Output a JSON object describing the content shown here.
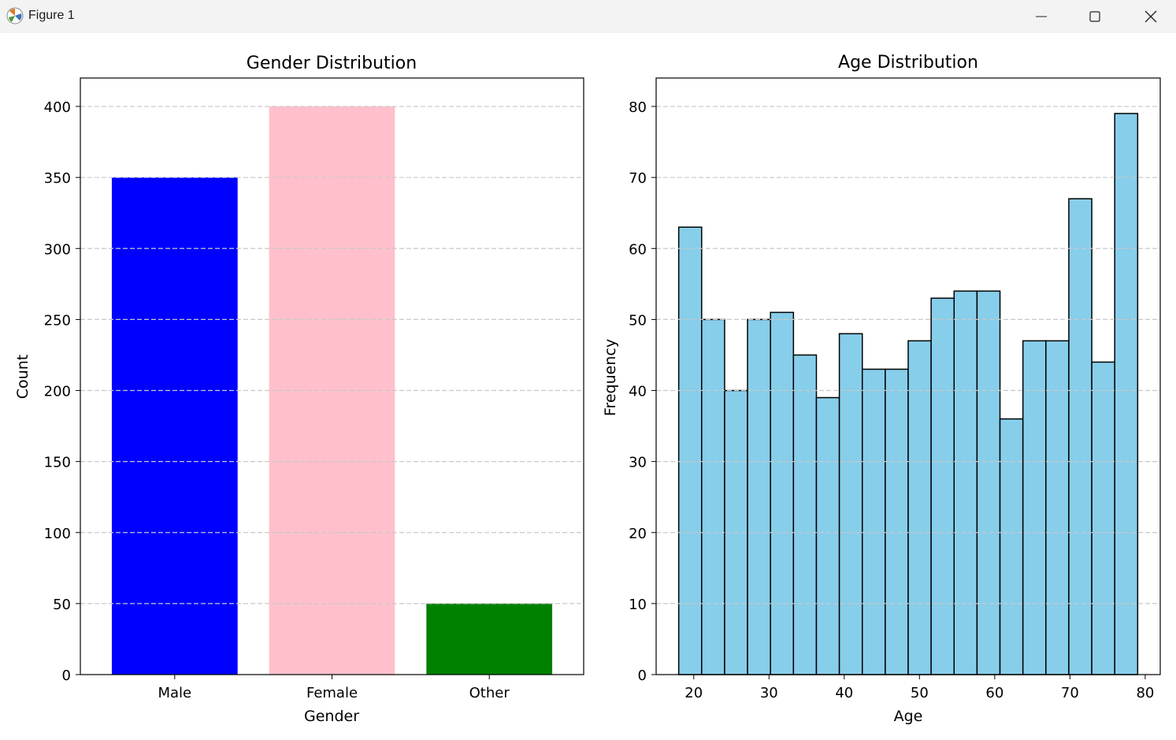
{
  "window": {
    "title": "Figure 1",
    "app_icon": "matplotlib-icon",
    "controls": [
      "minimize-icon",
      "maximize-icon",
      "close-icon"
    ]
  },
  "colors": {
    "male": "#0000ff",
    "female": "#ffc0cb",
    "other": "#008000",
    "histogram": "#87ceeb",
    "edge": "#000000",
    "grid": "#c8c8c8"
  },
  "chart_data": [
    {
      "type": "bar",
      "title": "Gender Distribution",
      "xlabel": "Gender",
      "ylabel": "Count",
      "categories": [
        "Male",
        "Female",
        "Other"
      ],
      "values": [
        350,
        400,
        50
      ],
      "bar_colors": [
        "#0000ff",
        "#ffc0cb",
        "#008000"
      ],
      "ylim": [
        0,
        420
      ],
      "yticks": [
        0,
        50,
        100,
        150,
        200,
        250,
        300,
        350,
        400
      ],
      "grid": "y-dashed"
    },
    {
      "type": "bar",
      "subtype": "histogram",
      "title": "Age Distribution",
      "xlabel": "Age",
      "ylabel": "Frequency",
      "bin_start": 18,
      "bin_end": 79,
      "values": [
        63,
        50,
        40,
        50,
        51,
        45,
        39,
        48,
        43,
        43,
        47,
        53,
        54,
        54,
        36,
        47,
        47,
        67,
        44,
        79
      ],
      "xlim": [
        15,
        82
      ],
      "ylim": [
        0,
        84
      ],
      "xticks": [
        20,
        30,
        40,
        50,
        60,
        70,
        80
      ],
      "yticks": [
        0,
        10,
        20,
        30,
        40,
        50,
        60,
        70,
        80
      ],
      "bar_color": "#87ceeb",
      "edge_color": "#000000",
      "grid": "y-dashed"
    }
  ]
}
